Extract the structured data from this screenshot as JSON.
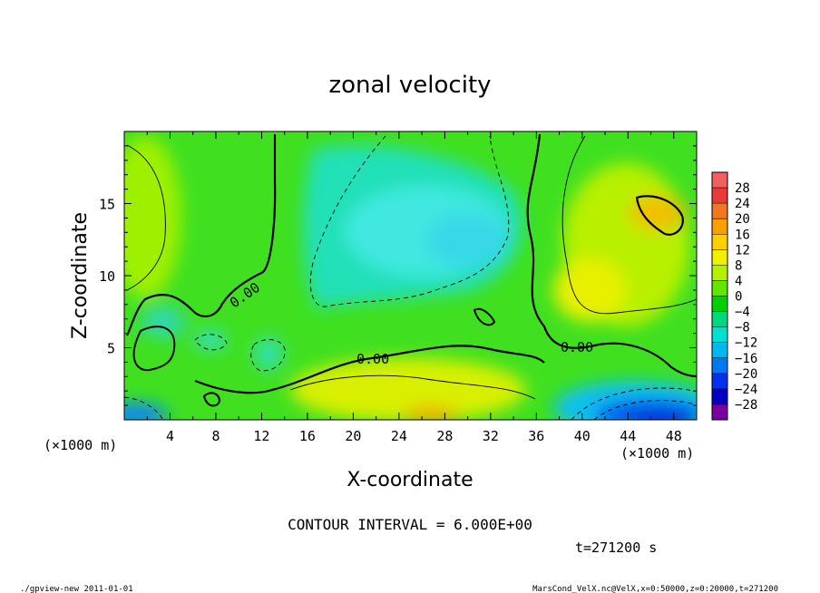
{
  "chart_data": {
    "type": "heatmap",
    "title": "zonal velocity",
    "xlabel": "X-coordinate",
    "ylabel": "Z-coordinate",
    "x_unit": "(×1000 m)",
    "y_unit": "(×1000 m)",
    "xlim": [
      0,
      50
    ],
    "ylim": [
      0,
      20
    ],
    "x_ticks": [
      4,
      8,
      12,
      16,
      20,
      24,
      28,
      32,
      36,
      40,
      44,
      48
    ],
    "y_ticks": [
      5,
      10,
      15
    ],
    "colorbar": {
      "labels": [
        "28",
        "24",
        "20",
        "16",
        "12",
        "8",
        "4",
        "0",
        "−4",
        "−8",
        "−12",
        "−16",
        "−20",
        "−24",
        "−28"
      ],
      "values": [
        28,
        24,
        20,
        16,
        12,
        8,
        4,
        0,
        -4,
        -8,
        -12,
        -16,
        -20,
        -24,
        -28
      ],
      "colors": [
        "#e83a3a",
        "#f0781e",
        "#f8a000",
        "#ffd000",
        "#f0f000",
        "#b4f000",
        "#60e800",
        "#00d000",
        "#00d880",
        "#00e0d0",
        "#00b8f0",
        "#0078f0",
        "#0030f0",
        "#0000c0",
        "#7800a0"
      ]
    },
    "contour_labels": [
      "0.00",
      "0.00",
      "0.00"
    ],
    "contour_interval_text": "CONTOUR INTERVAL = 6.000E+00",
    "time_text": "t=271200 s"
  },
  "footer": {
    "left": "./gpview-new   2011-01-01",
    "right": "MarsCond_VelX.nc@VelX,x=0:50000,z=0:20000,t=271200"
  }
}
